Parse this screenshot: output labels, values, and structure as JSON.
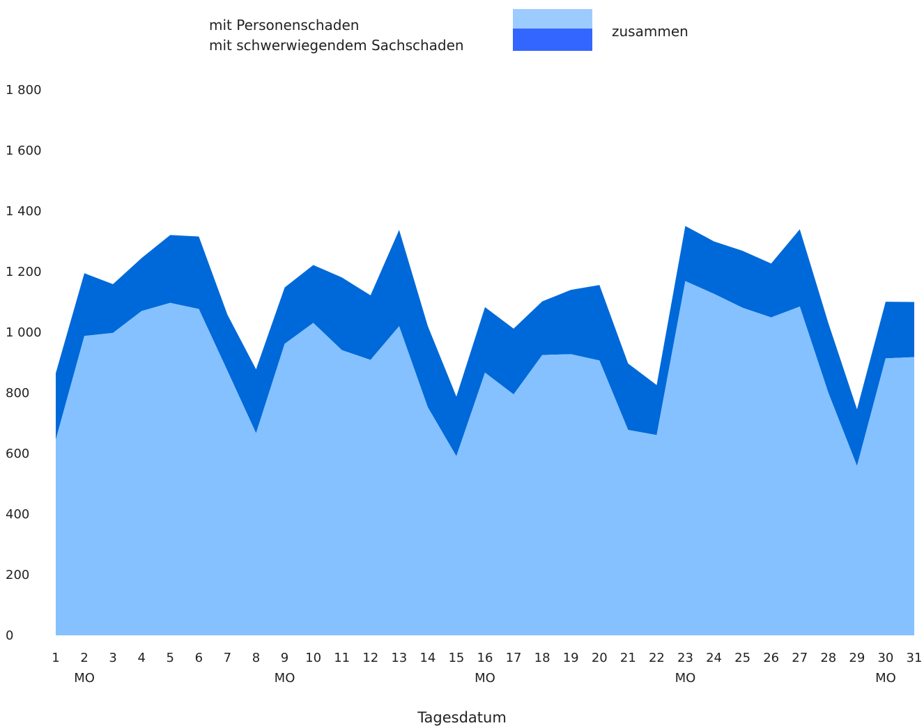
{
  "legend": {
    "items": [
      "mit Personenschaden",
      "mit schwerwiegendem Sachschaden"
    ],
    "total_label": "zusammen"
  },
  "colors": {
    "personenschaden": "#85c1ff",
    "personenschaden_legend": "#9ccbff",
    "sachschaden": "#0069d9",
    "sachschaden_legend": "#3366ff"
  },
  "chart_data": {
    "type": "area",
    "stacked": true,
    "xlabel": "Tagesdatum",
    "ylabel": "",
    "ylim": [
      0,
      1800
    ],
    "yticks": [
      0,
      200,
      400,
      600,
      800,
      1000,
      1200,
      1400,
      1600,
      1800
    ],
    "ytick_labels": [
      "0",
      "200",
      "400",
      "600",
      "800",
      "1 000",
      "1 200",
      "1 400",
      "1 600",
      "1 800"
    ],
    "categories": [
      "1",
      "2",
      "3",
      "4",
      "5",
      "6",
      "7",
      "8",
      "9",
      "10",
      "11",
      "12",
      "13",
      "14",
      "15",
      "16",
      "17",
      "18",
      "19",
      "20",
      "21",
      "22",
      "23",
      "24",
      "25",
      "26",
      "27",
      "28",
      "29",
      "30",
      "31"
    ],
    "weekday_labels": [
      {
        "category": "2",
        "label": "MO"
      },
      {
        "category": "9",
        "label": "MO"
      },
      {
        "category": "16",
        "label": "MO"
      },
      {
        "category": "23",
        "label": "MO"
      },
      {
        "category": "30",
        "label": "MO"
      }
    ],
    "series": [
      {
        "name": "mit Personenschaden",
        "values": [
          645,
          988,
          998,
          1070,
          1097,
          1077,
          873,
          667,
          962,
          1031,
          941,
          909,
          1020,
          753,
          591,
          867,
          795,
          925,
          928,
          907,
          678,
          661,
          1169,
          1127,
          1081,
          1049,
          1085,
          800,
          559,
          914,
          918
        ]
      },
      {
        "name": "mit schwerwiegendem Sachschaden",
        "values": [
          220,
          207,
          161,
          175,
          224,
          239,
          185,
          211,
          186,
          191,
          240,
          213,
          318,
          268,
          197,
          216,
          217,
          177,
          212,
          249,
          219,
          165,
          182,
          173,
          188,
          178,
          255,
          230,
          187,
          187,
          182
        ]
      }
    ],
    "totals_label": "zusammen"
  }
}
